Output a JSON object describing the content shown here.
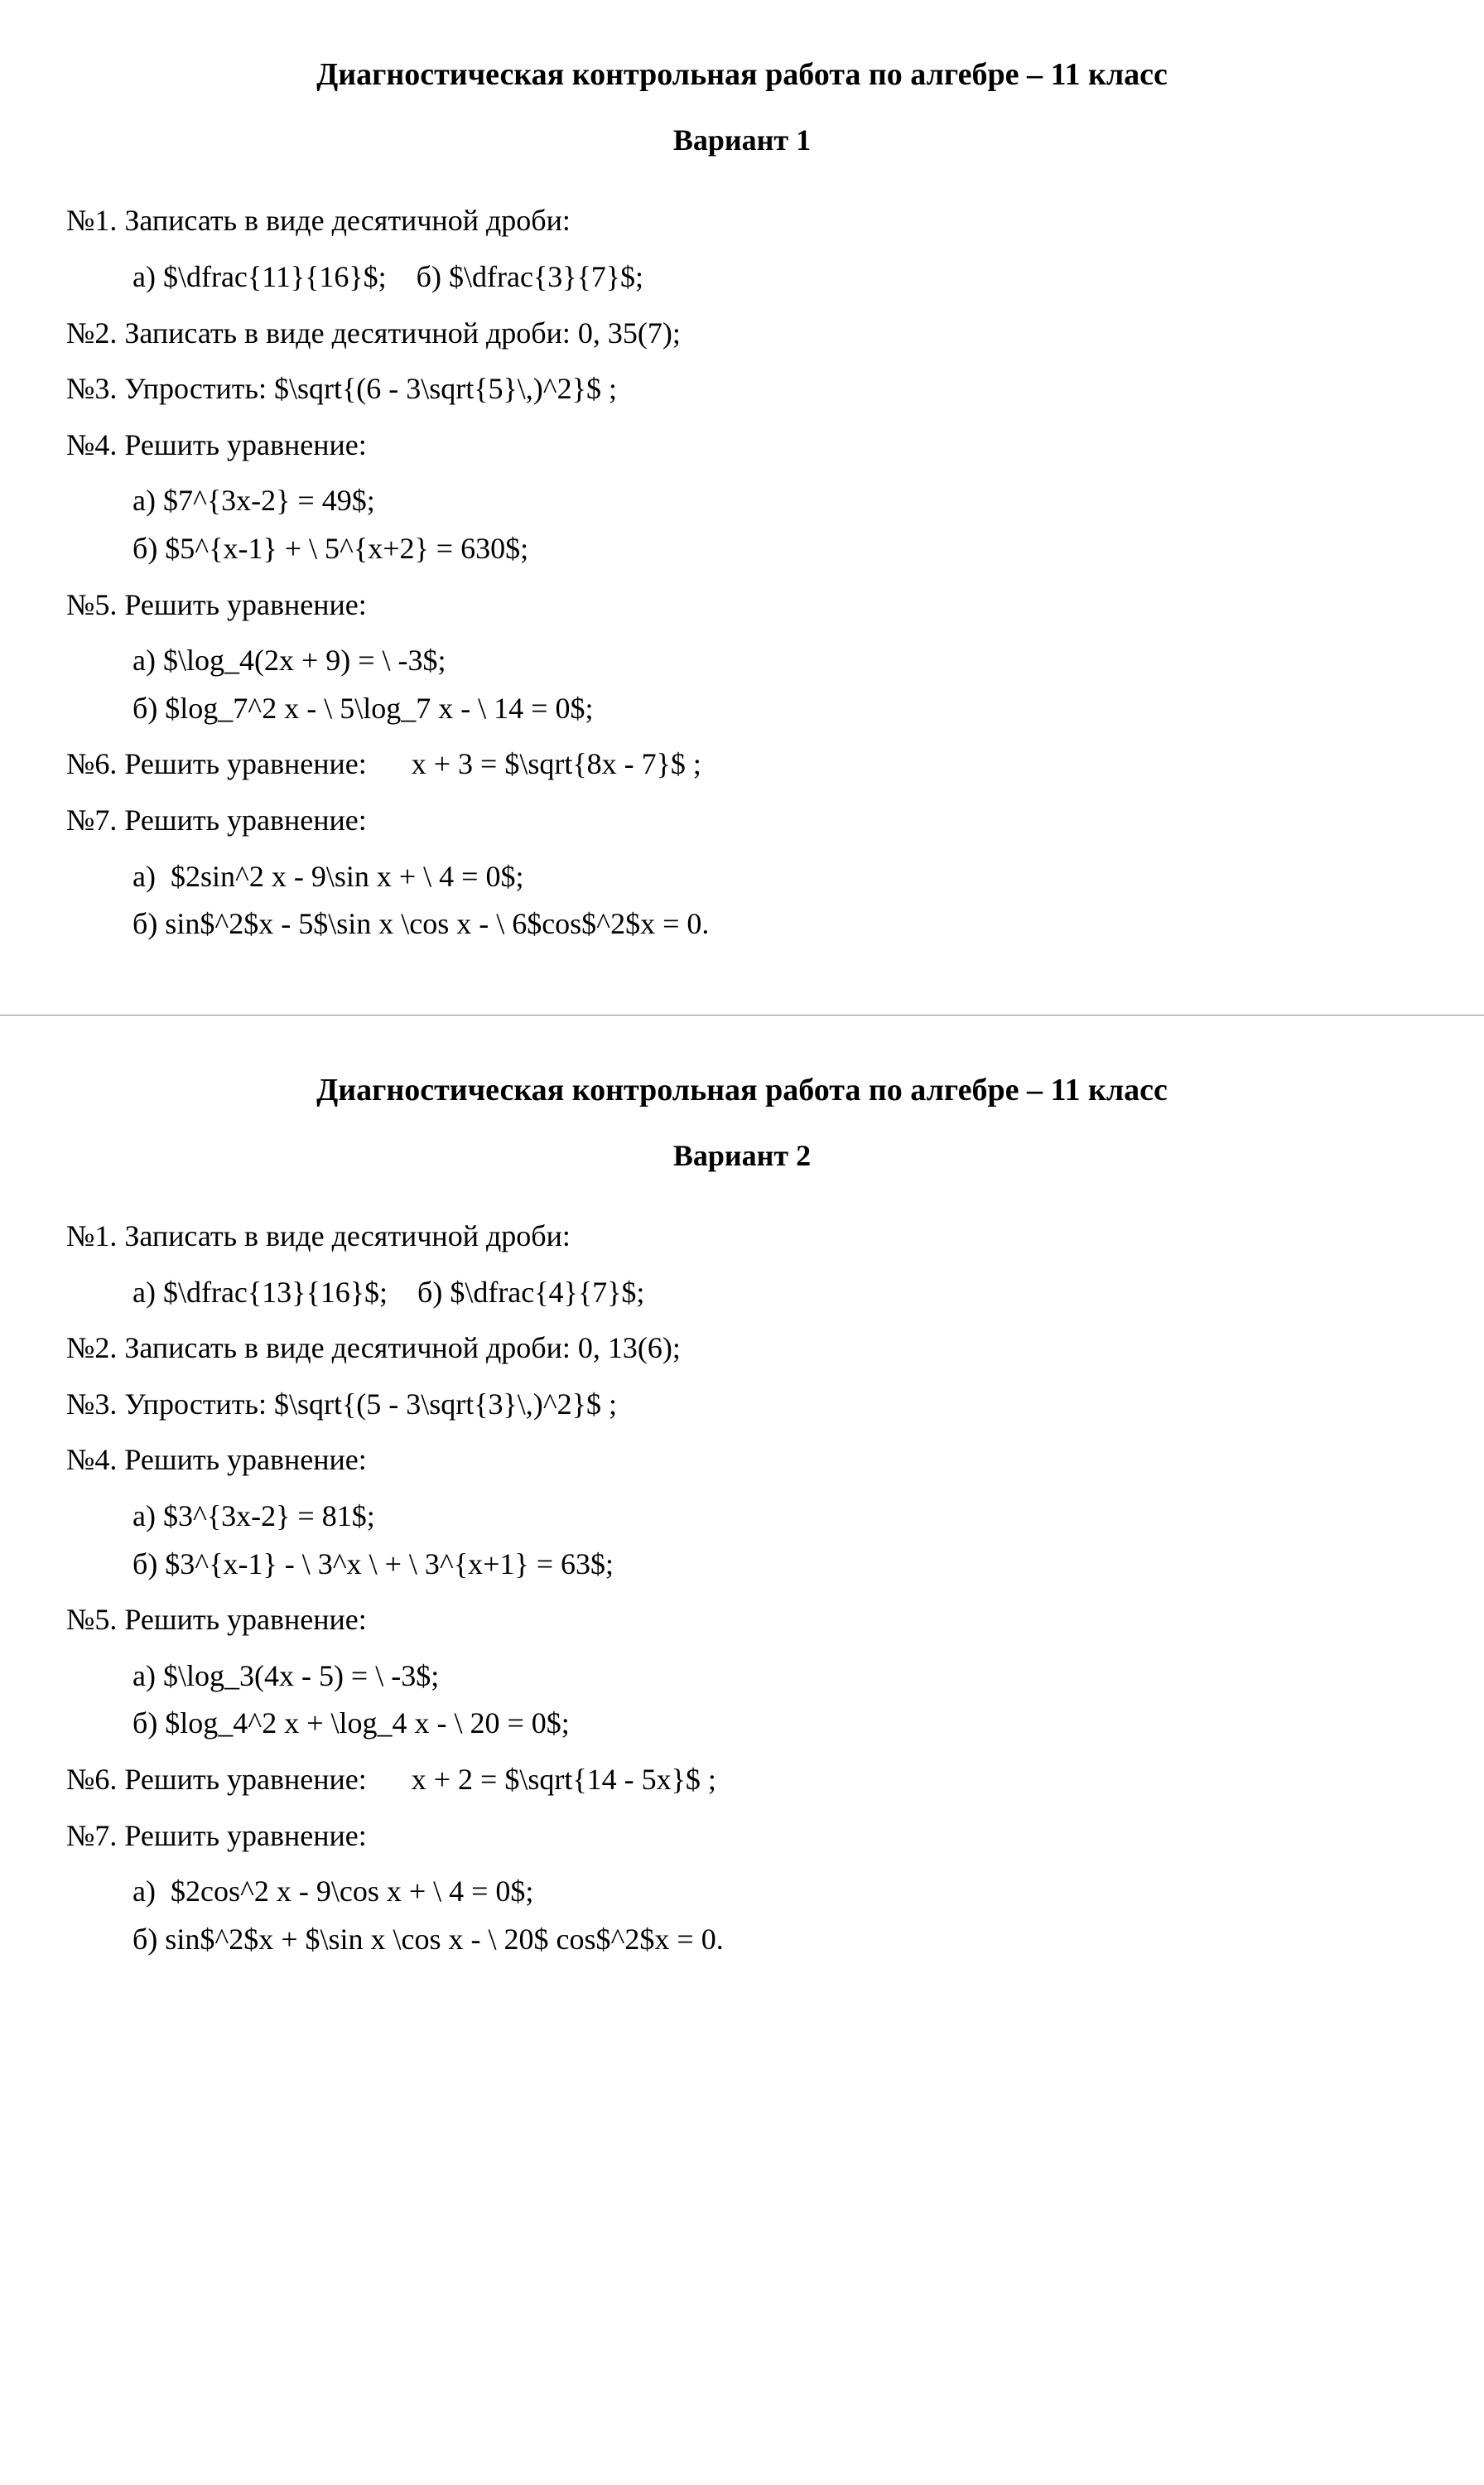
{
  "title": "Диагностическая контрольная работа по алгебре – 11 класс",
  "variant1": {
    "subtitle": "Вариант 1",
    "p1": "№1. Записать в виде десятичной дроби:",
    "p1ab": "а) $\\dfrac{11}{16}$;    б) $\\dfrac{3}{7}$;",
    "p2": "№2. Записать в виде десятичной дроби: 0, 35(7);",
    "p3": "№3. Упростить: $\\sqrt{(6 - 3\\sqrt{5}\\,)^2}$ ;",
    "p4": "№4. Решить уравнение:",
    "p4a": "а) $7^{3x-2} = 49$;",
    "p4b": "б) $5^{x-1} + \\ 5^{x+2} = 630$;",
    "p5": "№5. Решить уравнение:",
    "p5a": "а) $\\log_4(2x + 9) = \\ -3$;",
    "p5b": "б) $log_7^2 x - \\ 5\\log_7 x - \\ 14 = 0$;",
    "p6": "№6. Решить уравнение:      x + 3 = $\\sqrt{8x - 7}$ ;",
    "p7": "№7. Решить уравнение:",
    "p7a": "а)  $2sin^2 x - 9\\sin x + \\ 4 = 0$;",
    "p7b": "б) sin$^2$x - 5$\\sin x \\cos x - \\ 6$cos$^2$x = 0."
  },
  "variant2": {
    "subtitle": "Вариант 2",
    "p1": "№1. Записать в виде десятичной дроби:",
    "p1ab": "а) $\\dfrac{13}{16}$;    б) $\\dfrac{4}{7}$;",
    "p2": "№2. Записать в виде десятичной дроби: 0, 13(6);",
    "p3": "№3. Упростить: $\\sqrt{(5 - 3\\sqrt{3}\\,)^2}$ ;",
    "p4": "№4. Решить уравнение:",
    "p4a": "а) $3^{3x-2} = 81$;",
    "p4b": "б) $3^{x-1} - \\ 3^x \\ + \\ 3^{x+1} = 63$;",
    "p5": "№5. Решить уравнение:",
    "p5a": "а) $\\log_3(4x - 5) = \\ -3$;",
    "p5b": "б) $log_4^2 x + \\log_4 x - \\ 20 = 0$;",
    "p6": "№6. Решить уравнение:      x + 2 = $\\sqrt{14 - 5x}$ ;",
    "p7": "№7. Решить уравнение:",
    "p7a": "а)  $2cos^2 x - 9\\cos x + \\ 4 = 0$;",
    "p7b": "б) sin$^2$x + $\\sin x \\cos x - \\ 20$ cos$^2$x = 0."
  }
}
